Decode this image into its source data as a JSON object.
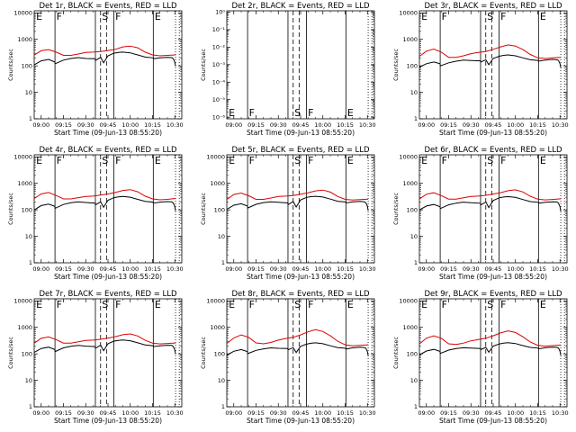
{
  "colors": {
    "events": "#000000",
    "lld": "#dd0000",
    "background": "#ffffff"
  },
  "common": {
    "xlabel": "Start Time (09-Jun-13 08:55:20)",
    "ylabel": "Counts/sec",
    "x_ticks": [
      "09:00",
      "09:15",
      "09:30",
      "09:45",
      "10:00",
      "10:15",
      "10:30"
    ],
    "x_tick_values_min": [
      0,
      15,
      30,
      45,
      60,
      75,
      90
    ],
    "xlim_min": [
      -4.7,
      94.7
    ],
    "y_ticks": [
      "1",
      "10",
      "100",
      "1000",
      "10000"
    ],
    "y_tick_values": [
      1,
      10,
      100,
      1000,
      10000
    ],
    "ylim": [
      1,
      12000
    ],
    "scale": "log",
    "marker_labels": [
      "E",
      "F",
      "S",
      "F",
      "E"
    ],
    "marker_times_min": [
      -4.3,
      9.3,
      40.0,
      49.0,
      75.5
    ],
    "solid_lines_min": [
      9.3,
      36.5,
      49.0,
      75.5
    ],
    "dashed_lines_min": [
      40.0,
      44.0
    ],
    "dotted_lines_min": [
      90.5,
      93.0
    ]
  },
  "chart_data": [
    {
      "type": "line",
      "title": "Det 1r, BLACK = Events, RED = LLD",
      "ylim": [
        1,
        12000
      ],
      "series": [
        {
          "name": "Events",
          "color": "#000000",
          "x": [
            -4.6,
            0,
            5,
            9.2,
            9.4,
            15,
            20,
            25,
            30,
            36.4,
            36.6,
            40,
            42,
            45,
            49,
            52,
            55,
            60,
            65,
            70,
            75.4,
            75.6,
            80,
            85,
            88,
            89,
            90,
            90.5
          ],
          "y": [
            110,
            155,
            175,
            140,
            120,
            165,
            190,
            205,
            190,
            185,
            160,
            210,
            130,
            240,
            300,
            320,
            330,
            310,
            260,
            215,
            200,
            185,
            200,
            210,
            205,
            185,
            140,
            95
          ]
        },
        {
          "name": "LLD",
          "color": "#dd0000",
          "x": [
            -4.6,
            0,
            5,
            10,
            15,
            20,
            25,
            30,
            35,
            40,
            45,
            50,
            55,
            60,
            65,
            70,
            75,
            80,
            85,
            90.5
          ],
          "y": [
            260,
            370,
            410,
            330,
            250,
            250,
            280,
            320,
            330,
            350,
            380,
            420,
            520,
            560,
            480,
            330,
            260,
            240,
            250,
            260
          ]
        }
      ]
    },
    {
      "type": "line",
      "title": "Det 2r, BLACK = Events, RED = LLD",
      "y_ticks": [
        "10⁰",
        "10⁻¹",
        "10⁻²",
        "10⁻³",
        "10⁻⁴",
        "10⁻⁵",
        "10⁻⁶"
      ],
      "y_tick_values": [
        1,
        0.1,
        0.01,
        0.001,
        0.0001,
        1e-05,
        1e-06
      ],
      "ylim": [
        8e-07,
        1.2
      ],
      "series": []
    },
    {
      "type": "line",
      "title": "Det 3r, BLACK = Events, RED = LLD",
      "ylim": [
        1,
        12000
      ],
      "series": [
        {
          "name": "Events",
          "color": "#000000",
          "x": [
            -4.6,
            0,
            5,
            9.2,
            9.4,
            15,
            20,
            25,
            30,
            36.4,
            36.6,
            40,
            42,
            45,
            49,
            52,
            55,
            60,
            65,
            70,
            75.4,
            75.6,
            80,
            85,
            88,
            89,
            90,
            90.5
          ],
          "y": [
            90,
            120,
            140,
            120,
            100,
            130,
            150,
            165,
            160,
            155,
            140,
            170,
            110,
            190,
            230,
            250,
            260,
            240,
            200,
            170,
            160,
            150,
            165,
            175,
            170,
            160,
            120,
            85
          ]
        },
        {
          "name": "LLD",
          "color": "#dd0000",
          "x": [
            -4.6,
            0,
            5,
            10,
            15,
            20,
            25,
            30,
            35,
            40,
            45,
            50,
            55,
            60,
            65,
            70,
            75,
            80,
            85,
            90.5
          ],
          "y": [
            230,
            360,
            430,
            330,
            210,
            210,
            240,
            290,
            320,
            350,
            420,
            520,
            620,
            560,
            410,
            270,
            200,
            190,
            200,
            210
          ]
        }
      ]
    },
    {
      "type": "line",
      "title": "Det 4r, BLACK = Events, RED = LLD",
      "ylim": [
        1,
        12000
      ],
      "series": [
        {
          "name": "Events",
          "color": "#000000",
          "x": [
            -4.6,
            0,
            5,
            9.2,
            9.4,
            15,
            20,
            25,
            30,
            36.4,
            36.6,
            40,
            42,
            45,
            49,
            52,
            55,
            60,
            65,
            70,
            75.4,
            75.6,
            80,
            85,
            88,
            89,
            90,
            90.5
          ],
          "y": [
            100,
            145,
            165,
            135,
            115,
            160,
            185,
            200,
            190,
            180,
            155,
            200,
            125,
            230,
            290,
            310,
            320,
            300,
            250,
            210,
            195,
            180,
            195,
            205,
            200,
            180,
            135,
            90
          ]
        },
        {
          "name": "LLD",
          "color": "#dd0000",
          "x": [
            -4.6,
            0,
            5,
            10,
            15,
            20,
            25,
            30,
            35,
            40,
            45,
            50,
            55,
            60,
            65,
            70,
            75,
            80,
            85,
            90.5
          ],
          "y": [
            270,
            400,
            450,
            350,
            260,
            260,
            290,
            320,
            330,
            360,
            400,
            450,
            540,
            580,
            480,
            330,
            260,
            240,
            250,
            270
          ]
        }
      ]
    },
    {
      "type": "line",
      "title": "Det 5r, BLACK = Events, RED = LLD",
      "ylim": [
        1,
        12000
      ],
      "series": [
        {
          "name": "Events",
          "color": "#000000",
          "x": [
            -4.6,
            0,
            5,
            9.2,
            9.4,
            15,
            20,
            25,
            30,
            36.4,
            36.6,
            40,
            42,
            45,
            49,
            52,
            55,
            60,
            65,
            70,
            75.4,
            75.6,
            80,
            85,
            88,
            89,
            90,
            90.5
          ],
          "y": [
            105,
            150,
            170,
            140,
            118,
            162,
            188,
            202,
            192,
            182,
            158,
            205,
            128,
            235,
            295,
            315,
            325,
            305,
            255,
            212,
            198,
            182,
            198,
            208,
            202,
            182,
            138,
            92
          ]
        },
        {
          "name": "LLD",
          "color": "#dd0000",
          "x": [
            -4.6,
            0,
            5,
            10,
            15,
            20,
            25,
            30,
            35,
            40,
            45,
            50,
            55,
            60,
            65,
            70,
            75,
            80,
            85,
            90.5
          ],
          "y": [
            250,
            380,
            430,
            340,
            250,
            250,
            280,
            320,
            330,
            350,
            390,
            440,
            520,
            560,
            470,
            320,
            250,
            235,
            245,
            255
          ]
        }
      ]
    },
    {
      "type": "line",
      "title": "Det 6r, BLACK = Events, RED = LLD",
      "ylim": [
        1,
        12000
      ],
      "series": [
        {
          "name": "Events",
          "color": "#000000",
          "x": [
            -4.6,
            0,
            5,
            9.2,
            9.4,
            15,
            20,
            25,
            30,
            36.4,
            36.6,
            40,
            42,
            45,
            49,
            52,
            55,
            60,
            65,
            70,
            75.4,
            75.6,
            80,
            85,
            88,
            89,
            90,
            90.5
          ],
          "y": [
            100,
            140,
            160,
            132,
            112,
            155,
            180,
            195,
            185,
            178,
            152,
            198,
            122,
            225,
            285,
            305,
            315,
            295,
            245,
            205,
            192,
            178,
            192,
            202,
            198,
            178,
            132,
            88
          ]
        },
        {
          "name": "LLD",
          "color": "#dd0000",
          "x": [
            -4.6,
            0,
            5,
            10,
            15,
            20,
            25,
            30,
            35,
            40,
            45,
            50,
            55,
            60,
            65,
            70,
            75,
            80,
            85,
            90.5
          ],
          "y": [
            260,
            390,
            440,
            345,
            255,
            255,
            285,
            320,
            330,
            355,
            395,
            445,
            530,
            570,
            475,
            325,
            255,
            238,
            248,
            262
          ]
        }
      ]
    },
    {
      "type": "line",
      "title": "Det 7r, BLACK = Events, RED = LLD",
      "ylim": [
        1,
        12000
      ],
      "series": [
        {
          "name": "Events",
          "color": "#000000",
          "x": [
            -4.6,
            0,
            5,
            9.2,
            9.4,
            15,
            20,
            25,
            30,
            36.4,
            36.6,
            40,
            42,
            45,
            49,
            52,
            55,
            60,
            65,
            70,
            75.4,
            75.6,
            80,
            85,
            88,
            89,
            90,
            90.5
          ],
          "y": [
            115,
            160,
            180,
            145,
            122,
            168,
            192,
            208,
            195,
            188,
            162,
            212,
            132,
            242,
            302,
            322,
            332,
            312,
            262,
            218,
            202,
            188,
            202,
            212,
            208,
            188,
            142,
            96
          ]
        },
        {
          "name": "LLD",
          "color": "#dd0000",
          "x": [
            -4.6,
            0,
            5,
            10,
            15,
            20,
            25,
            30,
            35,
            40,
            45,
            50,
            55,
            60,
            65,
            70,
            75,
            80,
            85,
            90.5
          ],
          "y": [
            255,
            385,
            435,
            345,
            255,
            255,
            285,
            320,
            330,
            355,
            395,
            445,
            530,
            565,
            475,
            325,
            255,
            238,
            248,
            258
          ]
        }
      ]
    },
    {
      "type": "line",
      "title": "Det 8r, BLACK = Events, RED = LLD",
      "ylim": [
        1,
        12000
      ],
      "series": [
        {
          "name": "Events",
          "color": "#000000",
          "x": [
            -4.6,
            0,
            5,
            9.2,
            9.4,
            15,
            20,
            25,
            30,
            36.4,
            36.6,
            40,
            42,
            45,
            49,
            52,
            55,
            60,
            65,
            70,
            75.4,
            75.6,
            80,
            85,
            88,
            89,
            90,
            90.5
          ],
          "y": [
            90,
            125,
            145,
            122,
            102,
            135,
            155,
            168,
            162,
            158,
            142,
            172,
            112,
            192,
            232,
            252,
            262,
            242,
            202,
            172,
            162,
            152,
            168,
            178,
            172,
            162,
            122,
            86
          ]
        },
        {
          "name": "LLD",
          "color": "#dd0000",
          "x": [
            -4.6,
            0,
            5,
            10,
            15,
            20,
            25,
            30,
            35,
            40,
            45,
            50,
            55,
            60,
            65,
            70,
            75,
            80,
            85,
            90.5
          ],
          "y": [
            250,
            400,
            520,
            420,
            260,
            240,
            270,
            330,
            380,
            420,
            520,
            680,
            820,
            700,
            480,
            300,
            220,
            200,
            210,
            220
          ]
        }
      ]
    },
    {
      "type": "line",
      "title": "Det 9r, BLACK = Events, RED = LLD",
      "ylim": [
        1,
        12000
      ],
      "series": [
        {
          "name": "Events",
          "color": "#000000",
          "x": [
            -4.6,
            0,
            5,
            9.2,
            9.4,
            15,
            20,
            25,
            30,
            36.4,
            36.6,
            40,
            42,
            45,
            49,
            52,
            55,
            60,
            65,
            70,
            75.4,
            75.6,
            80,
            85,
            88,
            89,
            90,
            90.5
          ],
          "y": [
            92,
            128,
            148,
            124,
            104,
            138,
            158,
            170,
            165,
            160,
            144,
            175,
            115,
            195,
            235,
            255,
            265,
            245,
            205,
            175,
            165,
            155,
            170,
            180,
            175,
            165,
            125,
            88
          ]
        },
        {
          "name": "LLD",
          "color": "#dd0000",
          "x": [
            -4.6,
            0,
            5,
            10,
            15,
            20,
            25,
            30,
            35,
            40,
            45,
            50,
            55,
            60,
            65,
            70,
            75,
            80,
            85,
            90.5
          ],
          "y": [
            240,
            390,
            480,
            390,
            240,
            225,
            255,
            310,
            350,
            390,
            480,
            620,
            740,
            640,
            440,
            280,
            210,
            195,
            205,
            215
          ]
        }
      ]
    }
  ]
}
